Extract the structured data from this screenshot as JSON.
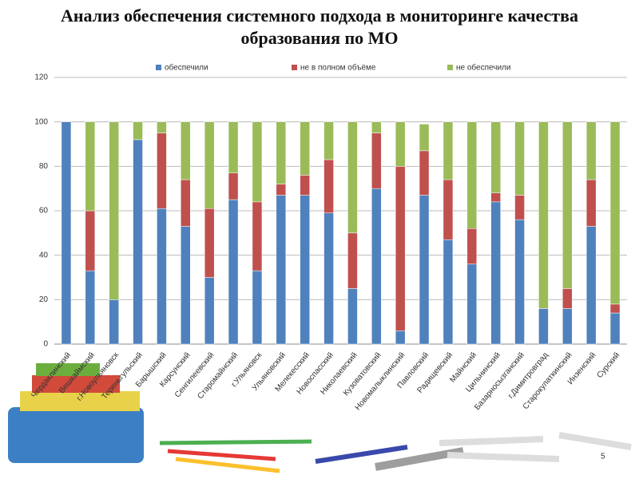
{
  "chart_data": {
    "type": "stacked_bar",
    "title": "Анализ обеспечения системного подхода  в мониторинге качества образования по МО",
    "categories": [
      "Чердаклинский",
      "Вешкаймский",
      "г.Новоульяновск",
      "Тереньгульский",
      "Барышский",
      "Карсунский",
      "Сенгилеевский",
      "Старомайнский",
      "г.Ульяновск",
      "Ульяновский",
      "Мелекесский",
      "Новоспасский",
      "Николаевский",
      "Кузоватовский",
      "Новомалыклинский",
      "Павловский",
      "Радищевский",
      "Майнский",
      "Цильнинский",
      "Базарносызганский",
      "г.Димитровград",
      "Старокулаткинский",
      "Инзенский",
      "Сурский"
    ],
    "series": [
      {
        "name": "обеспечили",
        "color": "#4f81bd",
        "values": [
          100,
          33,
          20,
          92,
          61,
          53,
          30,
          65,
          33,
          67,
          67,
          59,
          25,
          70,
          6,
          67,
          47,
          36,
          64,
          56,
          16,
          16,
          53,
          14
        ]
      },
      {
        "name": "не в полном объёме",
        "color": "#c0504d",
        "values": [
          0,
          27,
          0,
          0,
          34,
          21,
          31,
          12,
          31,
          5,
          9,
          24,
          25,
          25,
          74,
          20,
          27,
          16,
          4,
          11,
          0,
          9,
          21,
          4
        ]
      },
      {
        "name": "не обеспечили",
        "color": "#9bbb59",
        "values": [
          0,
          40,
          80,
          8,
          5,
          26,
          39,
          23,
          36,
          28,
          24,
          17,
          50,
          5,
          20,
          12,
          26,
          48,
          32,
          33,
          84,
          75,
          26,
          82
        ]
      }
    ],
    "ylim": [
      0,
      120
    ],
    "yticks": [
      0,
      20,
      40,
      60,
      80,
      100,
      120
    ],
    "grid": true,
    "legend": "top"
  },
  "page_number": "5"
}
